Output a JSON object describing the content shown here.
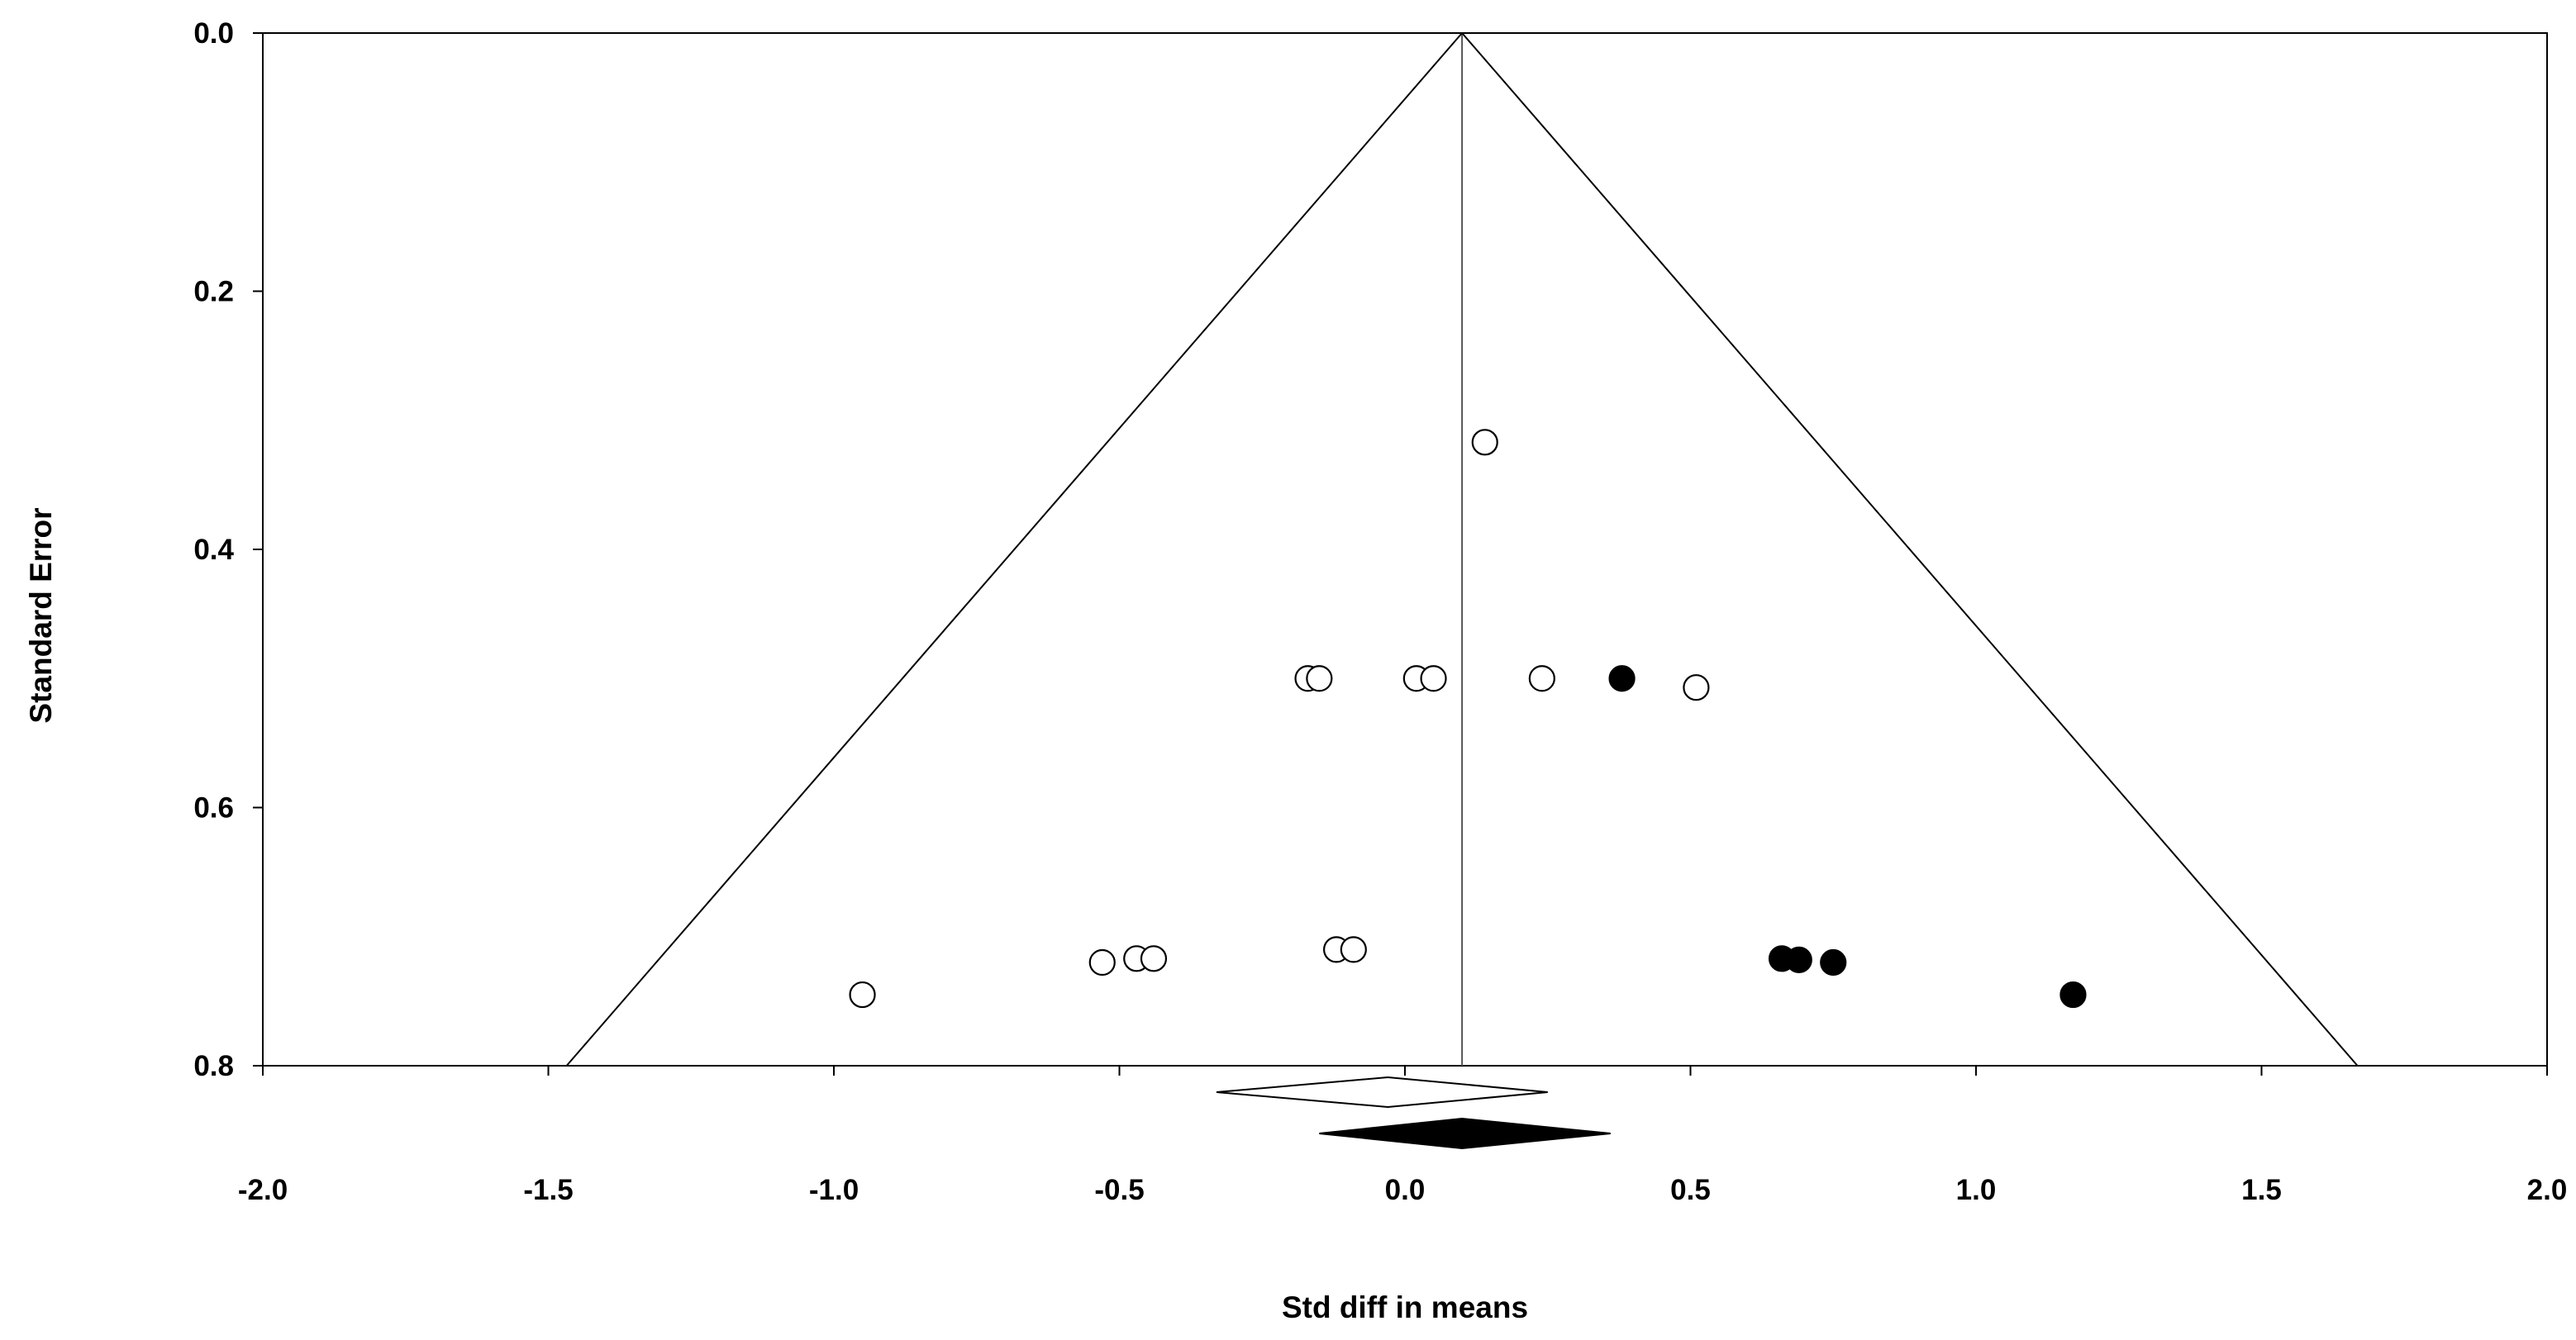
{
  "chart_data": {
    "type": "scatter",
    "subtype": "funnel-plot",
    "title": "",
    "xlabel": "Std diff in means",
    "ylabel": "Standard Error",
    "xlim": [
      -2.0,
      2.0
    ],
    "ylim": [
      0.0,
      0.8
    ],
    "y_inverted": true,
    "x_ticks": [
      "-2.0",
      "-1.5",
      "-1.0",
      "-0.5",
      "0.0",
      "0.5",
      "1.0",
      "1.5",
      "2.0"
    ],
    "y_ticks": [
      "0.0",
      "0.2",
      "0.4",
      "0.6",
      "0.8"
    ],
    "grid": false,
    "funnel": {
      "center": 0.1,
      "z": 1.96
    },
    "series": [
      {
        "kind": "observed",
        "marker": "open-circle",
        "points": [
          {
            "x": 0.14,
            "y": 0.317
          },
          {
            "x": -0.17,
            "y": 0.5
          },
          {
            "x": -0.15,
            "y": 0.5
          },
          {
            "x": 0.02,
            "y": 0.5
          },
          {
            "x": 0.05,
            "y": 0.5
          },
          {
            "x": 0.24,
            "y": 0.5
          },
          {
            "x": 0.51,
            "y": 0.507
          },
          {
            "x": -0.12,
            "y": 0.71
          },
          {
            "x": -0.09,
            "y": 0.71
          },
          {
            "x": -0.47,
            "y": 0.717
          },
          {
            "x": -0.44,
            "y": 0.717
          },
          {
            "x": -0.53,
            "y": 0.72
          },
          {
            "x": -0.95,
            "y": 0.745
          }
        ]
      },
      {
        "kind": "imputed",
        "marker": "filled-circle",
        "points": [
          {
            "x": 0.38,
            "y": 0.5
          },
          {
            "x": 0.66,
            "y": 0.717
          },
          {
            "x": 0.69,
            "y": 0.718
          },
          {
            "x": 0.75,
            "y": 0.72
          },
          {
            "x": 1.17,
            "y": 0.745
          }
        ]
      }
    ],
    "summary_diamonds": [
      {
        "kind": "observed",
        "fill": "none",
        "center": -0.03,
        "lower": -0.33,
        "upper": 0.25
      },
      {
        "kind": "adjusted",
        "fill": "#000000",
        "center": 0.1,
        "lower": -0.15,
        "upper": 0.36
      }
    ]
  }
}
